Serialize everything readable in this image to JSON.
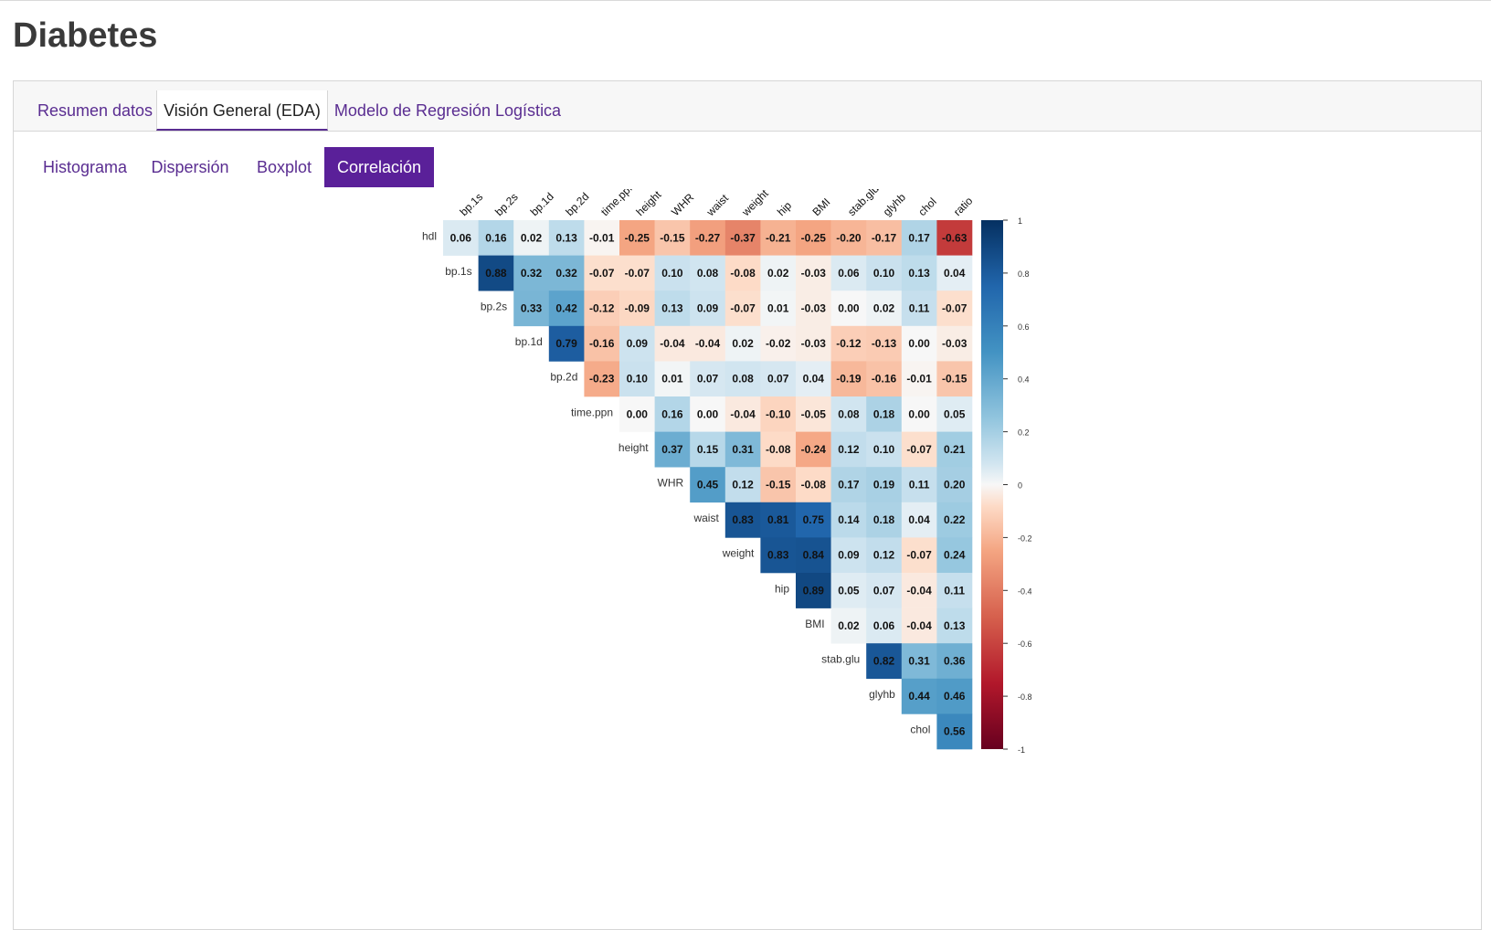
{
  "app": {
    "title": "Diabetes"
  },
  "main_tabs": [
    {
      "label": "Resumen datos"
    },
    {
      "label": "Visión General (EDA)"
    },
    {
      "label": "Modelo de Regresión Logística"
    }
  ],
  "sub_tabs": [
    {
      "label": "Histograma"
    },
    {
      "label": "Dispersión"
    },
    {
      "label": "Boxplot"
    },
    {
      "label": "Correlación"
    }
  ],
  "chart_data": {
    "type": "heatmap",
    "title": "",
    "row_labels": [
      "hdl",
      "bp.1s",
      "bp.2s",
      "bp.1d",
      "bp.2d",
      "time.ppn",
      "height",
      "WHR",
      "waist",
      "weight",
      "hip",
      "BMI",
      "stab.glu",
      "glyhb",
      "chol"
    ],
    "col_labels": [
      "bp.1s",
      "bp.2s",
      "bp.1d",
      "bp.2d",
      "time.ppn",
      "height",
      "WHR",
      "waist",
      "weight",
      "hip",
      "BMI",
      "stab.glu",
      "glyhb",
      "chol",
      "ratio"
    ],
    "values": [
      [
        "0.06",
        "0.16",
        "0.02",
        "0.13",
        "-0.01",
        "-0.25",
        "-0.15",
        "-0.27",
        "-0.37",
        "-0.21",
        "-0.25",
        "-0.20",
        "-0.17",
        "0.17",
        "-0.63"
      ],
      [
        null,
        "0.88",
        "0.32",
        "0.32",
        "-0.07",
        "-0.07",
        "0.10",
        "0.08",
        "-0.08",
        "0.02",
        "-0.03",
        "0.06",
        "0.10",
        "0.13",
        "0.04"
      ],
      [
        null,
        null,
        "0.33",
        "0.42",
        "-0.12",
        "-0.09",
        "0.13",
        "0.09",
        "-0.07",
        "0.01",
        "-0.03",
        "0.00",
        "0.02",
        "0.11",
        "-0.07"
      ],
      [
        null,
        null,
        null,
        "0.79",
        "-0.16",
        "0.09",
        "-0.04",
        "-0.04",
        "0.02",
        "-0.02",
        "-0.03",
        "-0.12",
        "-0.13",
        "0.00",
        "-0.03"
      ],
      [
        null,
        null,
        null,
        null,
        "-0.23",
        "0.10",
        "0.01",
        "0.07",
        "0.08",
        "0.07",
        "0.04",
        "-0.19",
        "-0.16",
        "-0.01",
        "-0.15"
      ],
      [
        null,
        null,
        null,
        null,
        null,
        "0.00",
        "0.16",
        "0.00",
        "-0.04",
        "-0.10",
        "-0.05",
        "0.08",
        "0.18",
        "0.00",
        "0.05"
      ],
      [
        null,
        null,
        null,
        null,
        null,
        null,
        "0.37",
        "0.15",
        "0.31",
        "-0.08",
        "-0.24",
        "0.12",
        "0.10",
        "-0.07",
        "0.21"
      ],
      [
        null,
        null,
        null,
        null,
        null,
        null,
        null,
        "0.45",
        "0.12",
        "-0.15",
        "-0.08",
        "0.17",
        "0.19",
        "0.11",
        "0.20"
      ],
      [
        null,
        null,
        null,
        null,
        null,
        null,
        null,
        null,
        "0.83",
        "0.81",
        "0.75",
        "0.14",
        "0.18",
        "0.04",
        "0.22"
      ],
      [
        null,
        null,
        null,
        null,
        null,
        null,
        null,
        null,
        null,
        "0.83",
        "0.84",
        "0.09",
        "0.12",
        "-0.07",
        "0.24"
      ],
      [
        null,
        null,
        null,
        null,
        null,
        null,
        null,
        null,
        null,
        null,
        "0.89",
        "0.05",
        "0.07",
        "-0.04",
        "0.11"
      ],
      [
        null,
        null,
        null,
        null,
        null,
        null,
        null,
        null,
        null,
        null,
        null,
        "0.02",
        "0.06",
        "-0.04",
        "0.13"
      ],
      [
        null,
        null,
        null,
        null,
        null,
        null,
        null,
        null,
        null,
        null,
        null,
        null,
        "0.82",
        "0.31",
        "0.36"
      ],
      [
        null,
        null,
        null,
        null,
        null,
        null,
        null,
        null,
        null,
        null,
        null,
        null,
        null,
        "0.44",
        "0.46"
      ],
      [
        null,
        null,
        null,
        null,
        null,
        null,
        null,
        null,
        null,
        null,
        null,
        null,
        null,
        null,
        "0.56"
      ]
    ],
    "color_scale": {
      "min": -1,
      "max": 1,
      "ticks": [
        "1",
        "0.8",
        "0.6",
        "0.4",
        "0.2",
        "0",
        "-0.2",
        "-0.4",
        "-0.6",
        "-0.8",
        "-1"
      ],
      "colors": {
        "negative": "#67001f",
        "neutral": "#f7f7f7",
        "positive": "#053061"
      }
    }
  }
}
